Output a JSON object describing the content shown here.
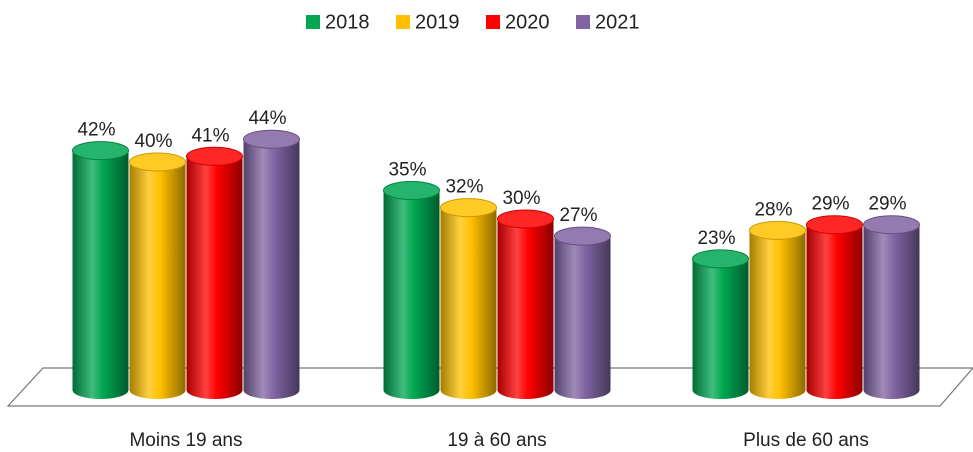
{
  "chart_data": {
    "type": "bar",
    "categories": [
      "Moins 19 ans",
      "19 à 60 ans",
      "Plus de 60 ans"
    ],
    "series": [
      {
        "name": "2018",
        "color": "#00a651",
        "values": [
          42,
          35,
          23
        ],
        "value_labels": [
          "42%",
          "35%",
          "23%"
        ]
      },
      {
        "name": "2019",
        "color": "#ffc000",
        "values": [
          40,
          32,
          28
        ],
        "value_labels": [
          "40%",
          "32%",
          "28%"
        ]
      },
      {
        "name": "2020",
        "color": "#ff0000",
        "values": [
          41,
          30,
          29
        ],
        "value_labels": [
          "41%",
          "30%",
          "29%"
        ]
      },
      {
        "name": "2021",
        "color": "#8064a2",
        "values": [
          44,
          27,
          29
        ],
        "value_labels": [
          "44%",
          "27%",
          "29%"
        ]
      }
    ],
    "legend": "top"
  }
}
